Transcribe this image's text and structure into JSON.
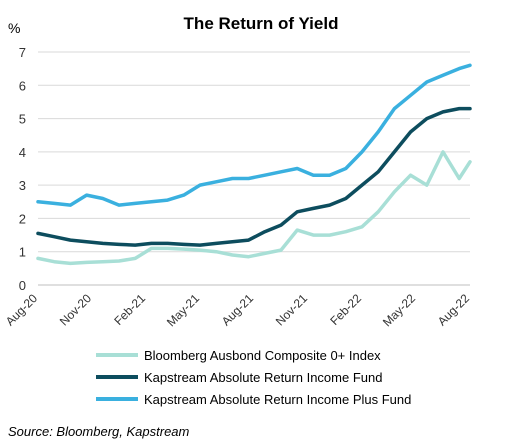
{
  "chart_data": {
    "type": "line",
    "title": "The Return of Yield",
    "ylabel": "%",
    "ylim": [
      0,
      7
    ],
    "yticks": [
      "0",
      "1",
      "2",
      "3",
      "4",
      "5",
      "6",
      "7"
    ],
    "xticks": [
      "Aug-20",
      "Nov-20",
      "Feb-21",
      "May-21",
      "Aug-21",
      "Nov-21",
      "Feb-22",
      "May-22",
      "Aug-22"
    ],
    "grid": "horizontal",
    "legend_position": "bottom",
    "series": [
      {
        "name": "Bloomberg Ausbond Composite 0+ Index",
        "color": "#a8dfd6",
        "x": [
          0,
          0.3,
          0.6,
          0.9,
          1.2,
          1.5,
          1.8,
          2.1,
          2.4,
          2.7,
          3,
          3.3,
          3.6,
          3.9,
          4.2,
          4.5,
          4.8,
          5.1,
          5.4,
          5.7,
          6,
          6.3,
          6.6,
          6.9,
          7.2,
          7.5,
          7.8,
          8
        ],
        "values": [
          0.8,
          0.7,
          0.65,
          0.68,
          0.7,
          0.72,
          0.8,
          1.1,
          1.1,
          1.08,
          1.05,
          1.0,
          0.9,
          0.85,
          0.95,
          1.05,
          1.65,
          1.5,
          1.5,
          1.6,
          1.75,
          2.2,
          2.8,
          3.3,
          3.0,
          4.0,
          3.2,
          3.7
        ]
      },
      {
        "name": "Kapstream Absolute Return Income Fund",
        "color": "#0d4d5e",
        "x": [
          0,
          0.3,
          0.6,
          0.9,
          1.2,
          1.5,
          1.8,
          2.1,
          2.4,
          2.7,
          3,
          3.3,
          3.6,
          3.9,
          4.2,
          4.5,
          4.8,
          5.1,
          5.4,
          5.7,
          6,
          6.3,
          6.6,
          6.9,
          7.2,
          7.5,
          7.8,
          8
        ],
        "values": [
          1.55,
          1.45,
          1.35,
          1.3,
          1.25,
          1.22,
          1.2,
          1.25,
          1.25,
          1.22,
          1.2,
          1.25,
          1.3,
          1.35,
          1.6,
          1.8,
          2.2,
          2.3,
          2.4,
          2.6,
          3.0,
          3.4,
          4.0,
          4.6,
          5.0,
          5.2,
          5.3,
          5.3
        ]
      },
      {
        "name": "Kapstream Absolute Return Income Plus Fund",
        "color": "#3ab0df",
        "x": [
          0,
          0.3,
          0.6,
          0.9,
          1.2,
          1.5,
          1.8,
          2.1,
          2.4,
          2.7,
          3,
          3.3,
          3.6,
          3.9,
          4.2,
          4.5,
          4.8,
          5.1,
          5.4,
          5.7,
          6,
          6.3,
          6.6,
          6.9,
          7.2,
          7.5,
          7.8,
          8
        ],
        "values": [
          2.5,
          2.45,
          2.4,
          2.7,
          2.6,
          2.4,
          2.45,
          2.5,
          2.55,
          2.7,
          3.0,
          3.1,
          3.2,
          3.2,
          3.3,
          3.4,
          3.5,
          3.3,
          3.3,
          3.5,
          4.0,
          4.6,
          5.3,
          5.7,
          6.1,
          6.3,
          6.5,
          6.6
        ]
      }
    ]
  },
  "source_note": "Source: Bloomberg, Kapstream"
}
